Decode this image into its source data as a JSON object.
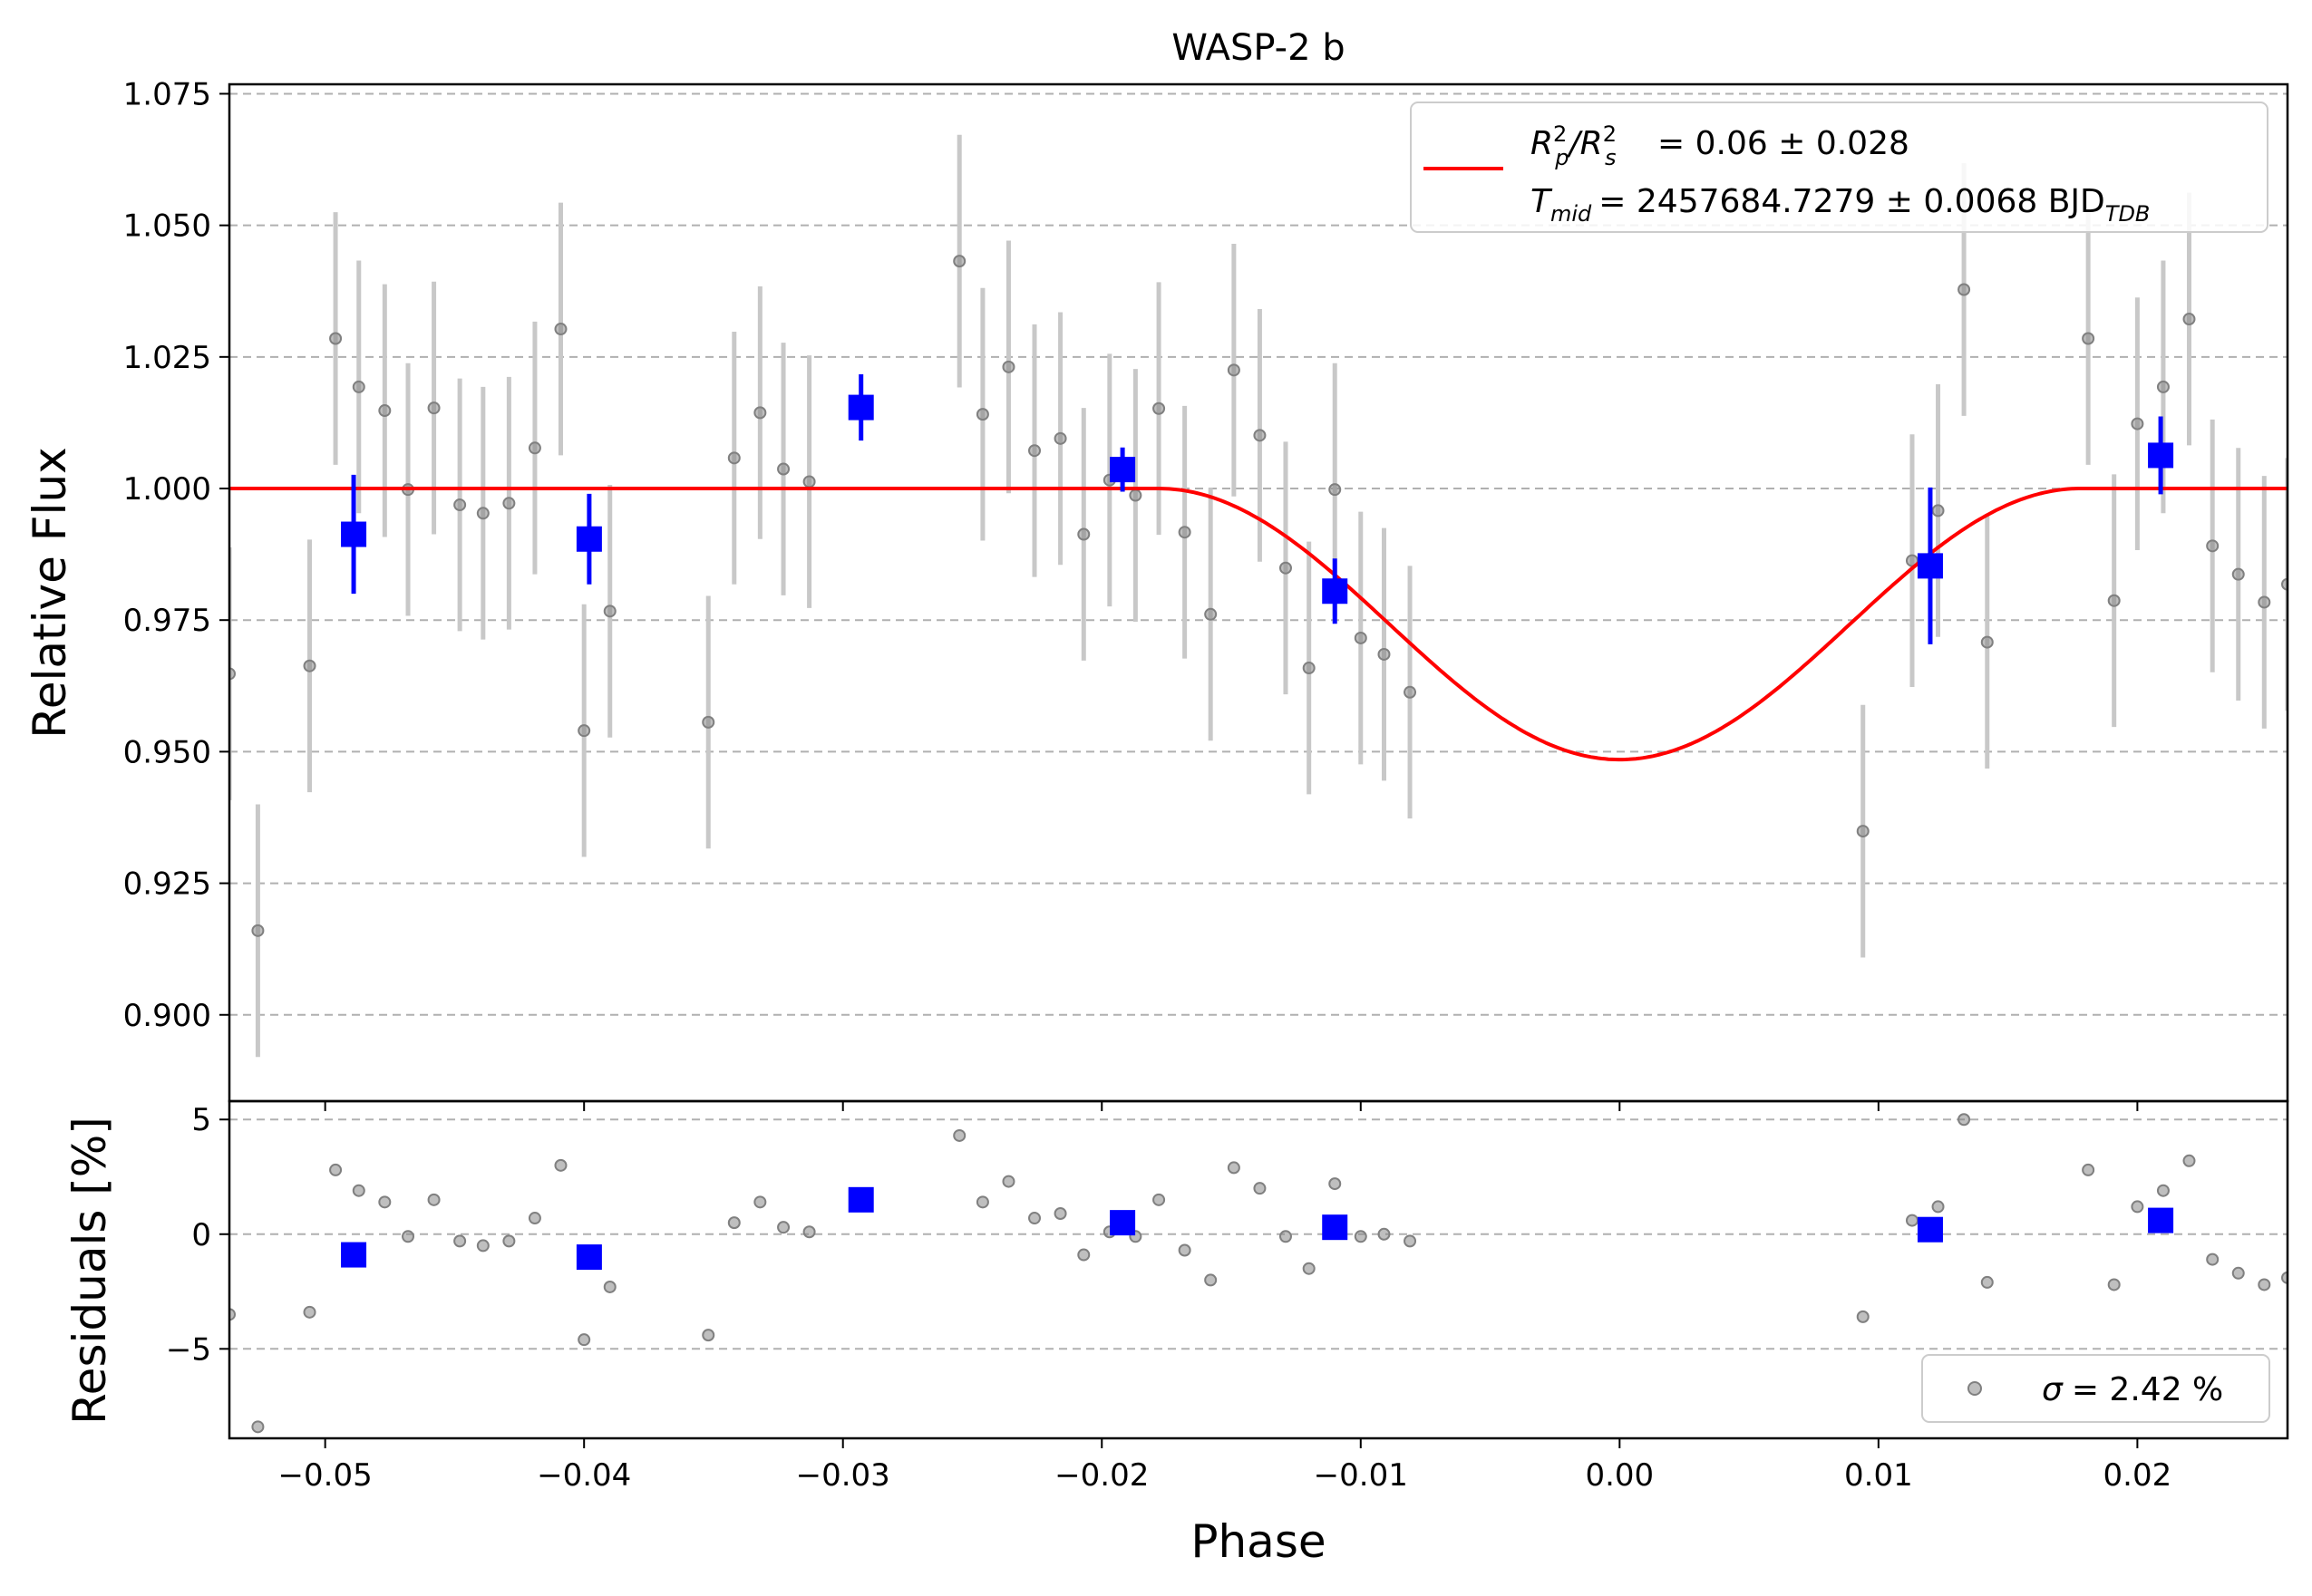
{
  "chart_data": [
    {
      "type": "scatter",
      "panel": "light-curve",
      "title": "WASP-2 b",
      "xlabel": "Phase",
      "ylabel": "Relative Flux",
      "xlim": [
        -0.0537,
        0.0258
      ],
      "ylim": [
        0.8836,
        1.0768
      ],
      "grid": "horizontal dashed",
      "xticks": [
        "−0.05",
        "−0.04",
        "−0.03",
        "−0.02",
        "−0.01",
        "0.00",
        "0.01",
        "0.02"
      ],
      "yticks": [
        "1.075",
        "1.050",
        "1.025",
        "1.000",
        "0.975",
        "0.950",
        "0.925",
        "0.900"
      ],
      "legend": {
        "position": "top-right",
        "line1": "= 0.06 ± 0.028",
        "line2": "= 2457684.7279 ± 0.0068 BJD",
        "line2_sub": "TDB",
        "mid_label": "T",
        "mid_sub": "mid"
      },
      "colors": {
        "data": "#808080",
        "errorbar": "#c8c8c8",
        "binned": "#0000ff",
        "model": "#ff0000",
        "grid": "#b0b0b0"
      },
      "series": [
        {
          "name": "data",
          "marker": "circle",
          "x": [
            -0.0537,
            -0.0526,
            -0.0506,
            -0.0496,
            -0.0487,
            -0.0477,
            -0.0468,
            -0.0458,
            -0.0448,
            -0.0439,
            -0.0429,
            -0.0419,
            -0.0409,
            -0.04,
            -0.039,
            -0.0352,
            -0.0342,
            -0.0332,
            -0.0323,
            -0.0313,
            -0.0255,
            -0.0246,
            -0.0236,
            -0.0226,
            -0.0216,
            -0.0207,
            -0.0197,
            -0.0187,
            -0.0178,
            -0.0168,
            -0.0158,
            -0.0149,
            -0.0139,
            -0.0129,
            -0.012,
            -0.011,
            -0.01,
            -0.0091,
            -0.0081,
            0.0094,
            0.0113,
            0.0123,
            0.0133,
            0.0142,
            0.0181,
            0.0191,
            0.02,
            0.021,
            0.022,
            0.0229,
            0.0239,
            0.0249,
            0.0258
          ],
          "y": [
            0.9648,
            0.916,
            0.9663,
            1.0285,
            1.0193,
            1.0148,
            0.9998,
            1.0153,
            0.9969,
            0.9953,
            0.9972,
            1.0077,
            1.0303,
            0.954,
            0.9767,
            0.9556,
            1.0058,
            1.0144,
            1.0037,
            1.0013,
            1.0432,
            1.0141,
            1.0231,
            1.0072,
            1.0095,
            0.9913,
            1.0016,
            0.9987,
            1.0152,
            0.9917,
            0.9761,
            1.0225,
            1.0101,
            0.9849,
            0.9659,
            0.9998,
            0.9716,
            0.9685,
            0.9613,
            0.9349,
            0.9863,
            0.9958,
            1.0378,
            0.9708,
            1.0285,
            0.9787,
            1.0123,
            1.0193,
            1.0322,
            0.9891,
            0.9837,
            0.9784,
            0.9818
          ],
          "err": 0.024
        },
        {
          "name": "binned",
          "marker": "square",
          "x": [
            -0.0489,
            -0.0398,
            -0.0293,
            -0.0192,
            -0.011,
            0.012,
            0.0209
          ],
          "y": [
            0.9913,
            0.9904,
            1.0154,
            1.0036,
            0.9805,
            0.9853,
            1.0063
          ],
          "err": [
            0.0113,
            0.0086,
            0.0063,
            0.0042,
            0.0062,
            0.0149,
            0.0074
          ]
        },
        {
          "name": "model",
          "type": "line",
          "depth": 0.0515,
          "mid_phase": 0.0,
          "half_duration": 0.0178
        }
      ]
    },
    {
      "type": "scatter",
      "panel": "residuals",
      "xlabel": "Phase",
      "ylabel": "Residuals [%]",
      "xlim": [
        -0.0537,
        0.0258
      ],
      "ylim": [
        -8.9,
        5.8
      ],
      "grid": "horizontal dashed",
      "xticks": [
        "−0.05",
        "−0.04",
        "−0.03",
        "−0.02",
        "−0.01",
        "0.00",
        "0.01",
        "0.02"
      ],
      "yticks": [
        "5",
        "0",
        "−5"
      ],
      "legend": {
        "position": "bottom-right",
        "label": "= 2.42 %",
        "sigma": "σ"
      },
      "series": [
        {
          "name": "data",
          "x": [
            -0.0537,
            -0.0526,
            -0.0506,
            -0.0496,
            -0.0487,
            -0.0477,
            -0.0468,
            -0.0458,
            -0.0448,
            -0.0439,
            -0.0429,
            -0.0419,
            -0.0409,
            -0.04,
            -0.039,
            -0.0352,
            -0.0342,
            -0.0332,
            -0.0323,
            -0.0313,
            -0.0255,
            -0.0246,
            -0.0236,
            -0.0226,
            -0.0216,
            -0.0207,
            -0.0197,
            -0.0187,
            -0.0178,
            -0.0168,
            -0.0158,
            -0.0149,
            -0.0139,
            -0.0129,
            -0.012,
            -0.011,
            -0.01,
            -0.0091,
            -0.0081,
            0.0094,
            0.0113,
            0.0123,
            0.0133,
            0.0142,
            0.0181,
            0.0191,
            0.02,
            0.021,
            0.022,
            0.0229,
            0.0239,
            0.0249,
            0.0258
          ],
          "y": [
            -3.5,
            -8.4,
            -3.4,
            2.8,
            1.9,
            1.4,
            -0.1,
            1.5,
            -0.3,
            -0.5,
            -0.3,
            0.7,
            3.0,
            -4.6,
            -2.3,
            -4.4,
            0.5,
            1.4,
            0.3,
            0.1,
            4.3,
            1.4,
            2.3,
            0.7,
            0.9,
            -0.9,
            0.1,
            -0.1,
            1.5,
            -0.7,
            -2.0,
            2.9,
            2.0,
            -0.1,
            -1.5,
            2.2,
            -0.1,
            0.0,
            -0.3,
            -3.6,
            0.6,
            1.2,
            5.0,
            -2.1,
            2.8,
            -2.2,
            1.2,
            1.9,
            3.2,
            -1.1,
            -1.7,
            -2.2,
            -1.9
          ]
        },
        {
          "name": "binned",
          "x": [
            -0.0489,
            -0.0398,
            -0.0293,
            -0.0192,
            -0.011,
            0.012,
            0.0209
          ],
          "y": [
            -0.9,
            -1.0,
            1.5,
            0.5,
            0.3,
            0.2,
            0.6
          ]
        }
      ]
    }
  ]
}
